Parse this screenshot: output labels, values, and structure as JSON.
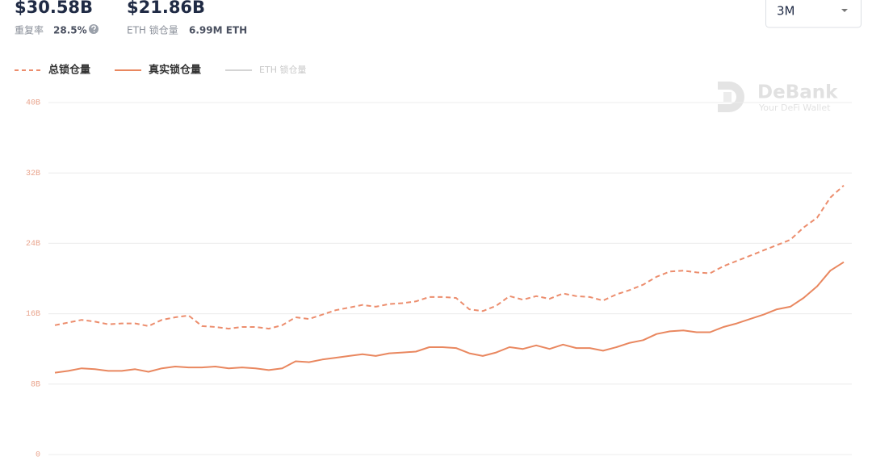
{
  "header": {
    "total_value": "$30.58B",
    "repeat_label": "重复率",
    "repeat_rate": "28.5%",
    "real_value": "$21.86B",
    "eth_label": "ETH 锁仓量",
    "eth_value": "6.99M ETH",
    "range": "3M"
  },
  "watermark": {
    "brand": "DeBank",
    "tagline": "Your DeFi Wallet"
  },
  "chart_data": {
    "type": "line",
    "categories": [
      null,
      null,
      null,
      null,
      null,
      null,
      null,
      null,
      null,
      null,
      null,
      null,
      null,
      null,
      null,
      null,
      null,
      null,
      null,
      null,
      null,
      null,
      null,
      null,
      null,
      null,
      null,
      null,
      null,
      null,
      null,
      null,
      null,
      null,
      null,
      null,
      null,
      null,
      null,
      null,
      null,
      null,
      null,
      null,
      null,
      null,
      null,
      null,
      null,
      null,
      null,
      null,
      null,
      null,
      null,
      null,
      null,
      null,
      null,
      null
    ],
    "series": [
      {
        "name": "总锁仓量",
        "color": "#ec8d6d",
        "dash": true,
        "values": [
          14.7,
          15.0,
          15.3,
          15.1,
          14.8,
          14.9,
          14.9,
          14.6,
          15.3,
          15.6,
          15.8,
          14.6,
          14.5,
          14.3,
          14.5,
          14.5,
          14.3,
          14.7,
          15.6,
          15.4,
          15.9,
          16.4,
          16.7,
          17.0,
          16.8,
          17.1,
          17.2,
          17.4,
          17.9,
          17.9,
          17.8,
          16.5,
          16.3,
          16.9,
          18.0,
          17.6,
          18.0,
          17.7,
          18.3,
          18.0,
          17.9,
          17.5,
          18.2,
          18.7,
          19.3,
          20.2,
          20.8,
          20.9,
          20.7,
          20.6,
          21.4,
          22.0,
          22.6,
          23.2,
          23.8,
          24.4,
          25.8,
          26.9,
          29.2,
          30.58
        ]
      },
      {
        "name": "真实锁仓量",
        "color": "#e9875f",
        "dash": false,
        "values": [
          9.3,
          9.5,
          9.8,
          9.7,
          9.5,
          9.5,
          9.7,
          9.4,
          9.8,
          10.0,
          9.9,
          9.9,
          10.0,
          9.8,
          9.9,
          9.8,
          9.6,
          9.8,
          10.6,
          10.5,
          10.8,
          11.0,
          11.2,
          11.4,
          11.2,
          11.5,
          11.6,
          11.7,
          12.2,
          12.2,
          12.1,
          11.5,
          11.2,
          11.6,
          12.2,
          12.0,
          12.4,
          12.0,
          12.5,
          12.1,
          12.1,
          11.8,
          12.2,
          12.7,
          13.0,
          13.7,
          14.0,
          14.1,
          13.9,
          13.9,
          14.5,
          14.9,
          15.4,
          15.9,
          16.5,
          16.8,
          17.8,
          19.1,
          20.9,
          21.86
        ]
      },
      {
        "name": "ETH 锁仓量",
        "color": "#d4d4d4",
        "hidden": true
      }
    ],
    "ylim": [
      0,
      40
    ],
    "yticks": [
      0,
      {
        "value": 8,
        "label": "8B"
      },
      {
        "value": 16,
        "label": "16B"
      },
      {
        "value": 24,
        "label": "24B"
      },
      {
        "value": 32,
        "label": "32B"
      },
      {
        "value": 40,
        "label": "40B"
      }
    ],
    "grid": true
  }
}
